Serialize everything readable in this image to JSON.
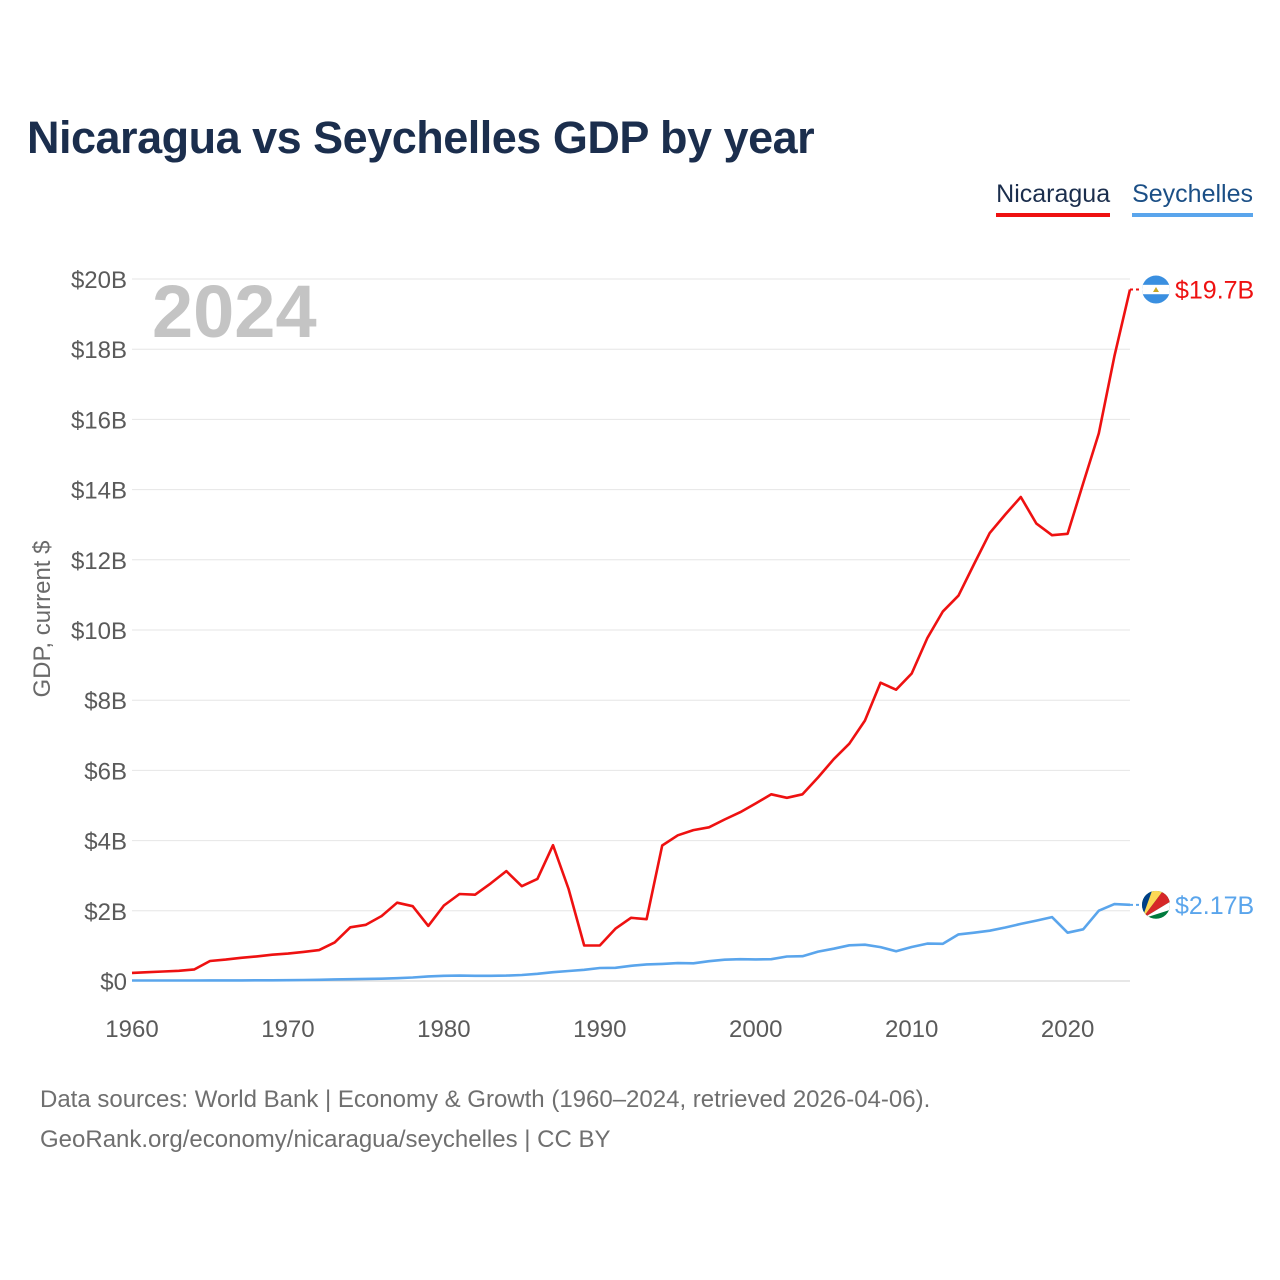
{
  "title": "Nicaragua vs Seychelles GDP by year",
  "year_watermark": "2024",
  "source": {
    "line1": "Data sources: World Bank | Economy & Growth (1960–2024, retrieved 2026-04-06).",
    "line2": "GeoRank.org/economy/nicaragua/seychelles | CC BY"
  },
  "colors": {
    "nicaragua": "#ee1111",
    "seychelles": "#5aa5ec",
    "title": "#1b2e4d"
  },
  "chart_data": {
    "type": "line",
    "title": "Nicaragua vs Seychelles GDP by year",
    "xlabel": "",
    "ylabel": "GDP, current $",
    "xlim": [
      1960,
      2024
    ],
    "ylim": [
      0,
      20
    ],
    "y_unit": "billion USD",
    "x_ticks": [
      1960,
      1970,
      1980,
      1990,
      2000,
      2010,
      2020
    ],
    "y_ticks": [
      0,
      2,
      4,
      6,
      8,
      10,
      12,
      14,
      16,
      18,
      20
    ],
    "y_tick_labels": [
      "$0",
      "$2B",
      "$4B",
      "$6B",
      "$8B",
      "$10B",
      "$12B",
      "$14B",
      "$16B",
      "$18B",
      "$20B"
    ],
    "grid": true,
    "legend_position": "top-right",
    "x": [
      1960,
      1961,
      1962,
      1963,
      1964,
      1965,
      1966,
      1967,
      1968,
      1969,
      1970,
      1971,
      1972,
      1973,
      1974,
      1975,
      1976,
      1977,
      1978,
      1979,
      1980,
      1981,
      1982,
      1983,
      1984,
      1985,
      1986,
      1987,
      1988,
      1989,
      1990,
      1991,
      1992,
      1993,
      1994,
      1995,
      1996,
      1997,
      1998,
      1999,
      2000,
      2001,
      2002,
      2003,
      2004,
      2005,
      2006,
      2007,
      2008,
      2009,
      2010,
      2011,
      2012,
      2013,
      2014,
      2015,
      2016,
      2017,
      2018,
      2019,
      2020,
      2021,
      2022,
      2023,
      2024
    ],
    "series": [
      {
        "name": "Nicaragua",
        "color": "#ee1111",
        "end_label": "$19.7B",
        "values": [
          0.23,
          0.25,
          0.27,
          0.29,
          0.33,
          0.57,
          0.61,
          0.66,
          0.7,
          0.75,
          0.78,
          0.83,
          0.88,
          1.1,
          1.53,
          1.6,
          1.85,
          2.23,
          2.13,
          1.57,
          2.15,
          2.48,
          2.46,
          2.78,
          3.13,
          2.7,
          2.91,
          3.87,
          2.62,
          1.01,
          1.01,
          1.49,
          1.8,
          1.76,
          3.86,
          4.15,
          4.3,
          4.38,
          4.6,
          4.81,
          5.06,
          5.32,
          5.22,
          5.32,
          5.8,
          6.32,
          6.76,
          7.42,
          8.5,
          8.3,
          8.76,
          9.77,
          10.53,
          10.98,
          11.88,
          12.76,
          13.29,
          13.79,
          13.03,
          12.7,
          12.74,
          14.18,
          15.6,
          17.8,
          19.7
        ]
      },
      {
        "name": "Seychelles",
        "color": "#5aa5ec",
        "end_label": "$2.17B",
        "values": [
          0.013,
          0.013,
          0.014,
          0.015,
          0.015,
          0.016,
          0.017,
          0.018,
          0.019,
          0.021,
          0.024,
          0.028,
          0.035,
          0.045,
          0.052,
          0.06,
          0.065,
          0.08,
          0.099,
          0.13,
          0.147,
          0.154,
          0.147,
          0.147,
          0.153,
          0.17,
          0.205,
          0.25,
          0.285,
          0.318,
          0.369,
          0.375,
          0.434,
          0.473,
          0.486,
          0.509,
          0.504,
          0.563,
          0.608,
          0.622,
          0.615,
          0.622,
          0.698,
          0.706,
          0.839,
          0.919,
          1.016,
          1.033,
          0.967,
          0.847,
          0.97,
          1.065,
          1.06,
          1.328,
          1.376,
          1.434,
          1.525,
          1.626,
          1.721,
          1.82,
          1.377,
          1.472,
          2.003,
          2.192,
          2.17
        ]
      }
    ]
  }
}
